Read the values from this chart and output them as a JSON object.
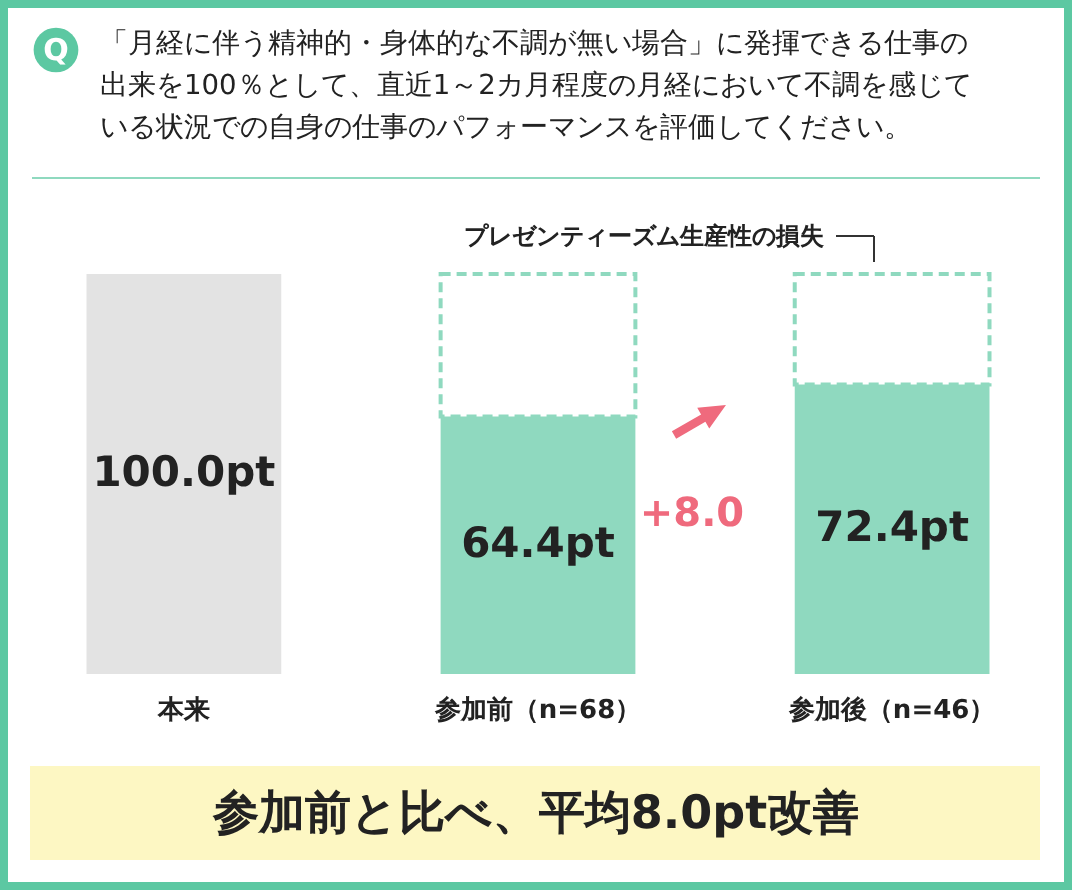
{
  "chart_data": {
    "type": "bar",
    "title": "「月経に伴う精神的・身体的な不調が無い場合」に発揮できる仕事の出来を100％として、直近1～2カ月程度の月経において不調を感じている状況での自身の仕事のパフォーマンスを評価してください。",
    "categories": [
      "本来",
      "参加前（n=68）",
      "参加後（n=46）"
    ],
    "stacked": true,
    "series": [
      {
        "colors": [
          "#e3e3e3",
          "#8fd9bf",
          "#8fd9bf"
        ],
        "values": [
          100.0,
          64.4,
          72.4
        ],
        "value_labels": [
          "100.0pt",
          "64.4pt",
          "72.4pt"
        ]
      },
      {
        "name": "プレゼンティーズム生産性の損失",
        "color": "#8fd9bf",
        "line_style": "dashed",
        "values": [
          null,
          35.6,
          27.6
        ]
      }
    ],
    "annotations": [
      "Q",
      "+8.0",
      "参加前と比べ、平均8.0pt改善"
    ]
  }
}
